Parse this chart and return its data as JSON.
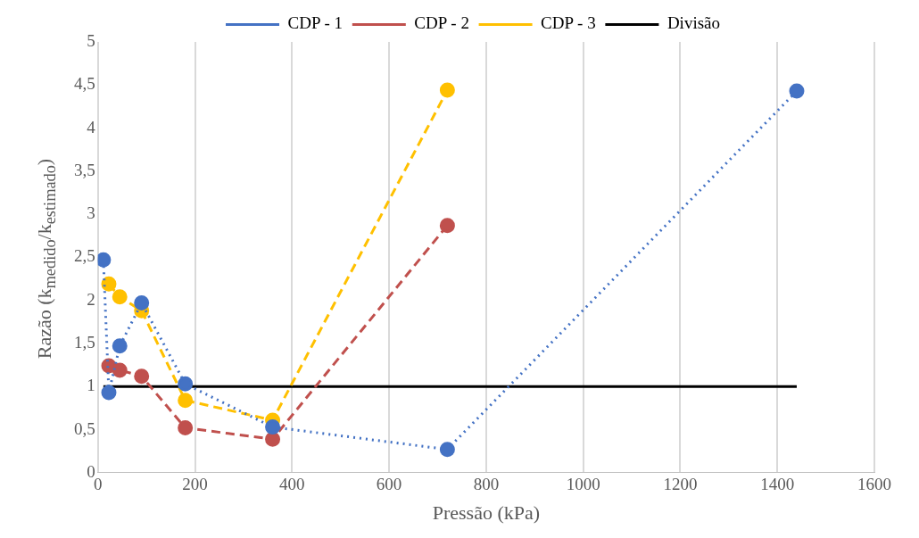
{
  "chart_data": {
    "type": "line",
    "xlabel": "Pressão (kPa)",
    "ylabel": "Razão (k$_{medido}$/k$_{estimado}$)",
    "xlim": [
      0,
      1600
    ],
    "xticks": [
      0,
      200,
      400,
      600,
      800,
      1000,
      1200,
      1400,
      1600
    ],
    "ylim": [
      0,
      5
    ],
    "yticks": [
      0,
      {
        "value": 0.5,
        "label": "0,5"
      },
      1,
      {
        "value": 1.5,
        "label": "1,5"
      },
      2,
      {
        "value": 2.5,
        "label": "2,5"
      },
      3,
      {
        "value": 3.5,
        "label": "3,5"
      },
      4,
      {
        "value": 4.5,
        "label": "4,5"
      },
      5
    ],
    "grid": "x",
    "legend": "top",
    "marker": "circle",
    "series": [
      {
        "name": "CDP - 1",
        "color": "#4472c4",
        "line_style": "dotted",
        "x": [
          11.25,
          22.5,
          45,
          90,
          180,
          360,
          720,
          1440
        ],
        "values": [
          2.47,
          0.93,
          1.47,
          1.97,
          1.03,
          0.53,
          0.27,
          4.43
        ]
      },
      {
        "name": "CDP - 2",
        "color": "#c0504d",
        "line_style": "dashed",
        "x": [
          22.5,
          45,
          90,
          180,
          360,
          720
        ],
        "values": [
          1.24,
          1.19,
          1.12,
          0.52,
          0.39,
          2.87
        ]
      },
      {
        "name": "CDP - 3",
        "color": "#ffc000",
        "line_style": "dashed",
        "x": [
          22.5,
          45,
          90,
          180,
          360,
          720
        ],
        "values": [
          2.19,
          2.04,
          1.88,
          0.84,
          0.61,
          4.44
        ]
      },
      {
        "name": "Divisão",
        "color": "#000000",
        "line_style": "solid",
        "marker": "none",
        "x": [
          11.25,
          1440
        ],
        "values": [
          1,
          1
        ]
      }
    ]
  }
}
